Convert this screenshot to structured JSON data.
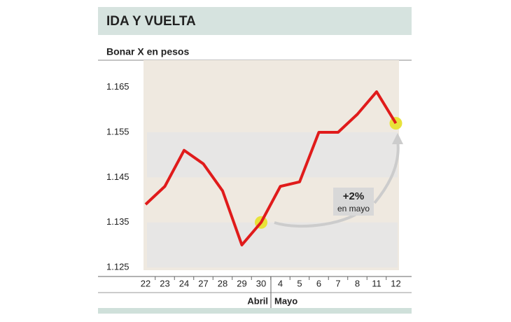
{
  "chart_data": {
    "type": "line",
    "title": "IDA Y VUELTA",
    "subtitle": "Bonar X en pesos",
    "categories": [
      "22",
      "23",
      "24",
      "27",
      "28",
      "29",
      "30",
      "4",
      "5",
      "6",
      "7",
      "8",
      "11",
      "12"
    ],
    "values": [
      1.139,
      1.143,
      1.151,
      1.148,
      1.142,
      1.13,
      1.135,
      1.143,
      1.144,
      1.155,
      1.155,
      1.159,
      1.164,
      1.157
    ],
    "color": "#e01b1b",
    "ylim": [
      1.123,
      1.171
    ],
    "yticks": [
      1.125,
      1.135,
      1.145,
      1.155,
      1.165
    ],
    "months": [
      "Abril",
      "Mayo"
    ],
    "annotation": {
      "value": "+2%",
      "text": "en mayo"
    }
  }
}
